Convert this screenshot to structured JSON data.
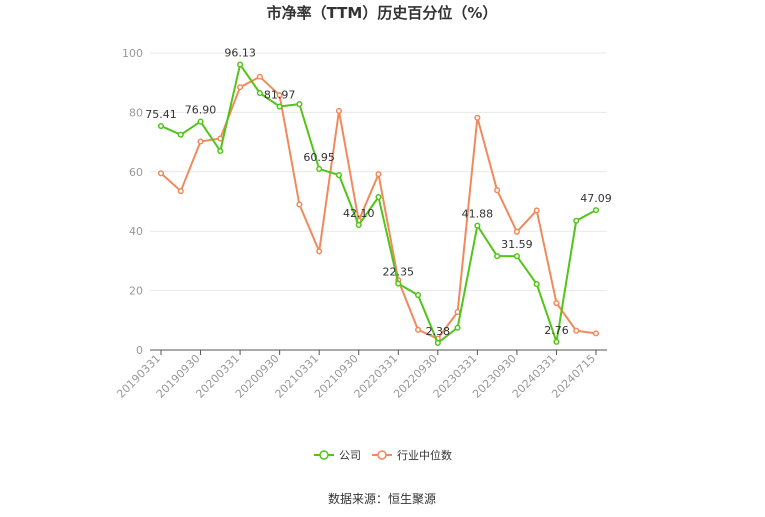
{
  "chart_data": {
    "type": "line",
    "title": "市净率（TTM）历史百分位（%）",
    "ylim": [
      0,
      100
    ],
    "y_ticks": [
      "0",
      "20",
      "40",
      "60",
      "80",
      "100"
    ],
    "x_tick_labels": [
      "20190331",
      "20190930",
      "20200331",
      "20200930",
      "20210331",
      "20210930",
      "20220331",
      "20220930",
      "20230331",
      "20230930",
      "20240331",
      "20240715"
    ],
    "x_tick_index": [
      0,
      2,
      4,
      6,
      8,
      10,
      12,
      14,
      16,
      18,
      20,
      22
    ],
    "grid": "horizontal",
    "legend_position": "bottom",
    "series": [
      {
        "name": "公司",
        "color": "#52c41a",
        "values": [
          75.41,
          72.5,
          76.9,
          67.0,
          96.13,
          86.5,
          81.97,
          82.8,
          60.95,
          58.9,
          42.1,
          51.5,
          22.35,
          18.5,
          2.38,
          7.5,
          41.88,
          31.6,
          31.59,
          22.2,
          2.76,
          43.5,
          47.09
        ]
      },
      {
        "name": "行业中位数",
        "color": "#f08a5d",
        "values": [
          59.5,
          53.5,
          70.2,
          71.2,
          88.5,
          92.0,
          85.8,
          49.0,
          33.2,
          80.5,
          43.5,
          59.2,
          23.5,
          6.8,
          3.8,
          12.8,
          78.2,
          53.8,
          39.8,
          47.0,
          15.8,
          6.5,
          5.6
        ]
      }
    ],
    "data_labels": [
      {
        "series": 0,
        "index": 0,
        "text": "75.41"
      },
      {
        "series": 0,
        "index": 2,
        "text": "76.90"
      },
      {
        "series": 0,
        "index": 4,
        "text": "96.13"
      },
      {
        "series": 0,
        "index": 6,
        "text": "81.97"
      },
      {
        "series": 0,
        "index": 8,
        "text": "60.95"
      },
      {
        "series": 0,
        "index": 10,
        "text": "42.10"
      },
      {
        "series": 0,
        "index": 12,
        "text": "22.35"
      },
      {
        "series": 0,
        "index": 14,
        "text": "2.38"
      },
      {
        "series": 0,
        "index": 16,
        "text": "41.88"
      },
      {
        "series": 0,
        "index": 18,
        "text": "31.59"
      },
      {
        "series": 0,
        "index": 20,
        "text": "2.76"
      },
      {
        "series": 0,
        "index": 22,
        "text": "47.09"
      }
    ],
    "source": "数据来源：恒生聚源"
  }
}
